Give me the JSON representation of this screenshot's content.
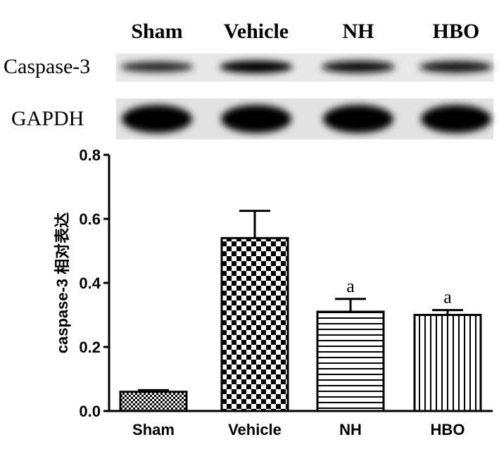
{
  "blot": {
    "lane_labels": [
      "Sham",
      "Vehicle",
      "NH",
      "HBO"
    ],
    "rows": [
      {
        "label": "Caspase-3",
        "band_intensity": [
          0.55,
          1.0,
          0.85,
          0.8
        ]
      },
      {
        "label": "GAPDH",
        "band_intensity": [
          1.0,
          1.0,
          1.0,
          1.0
        ]
      }
    ]
  },
  "chart_data": {
    "type": "bar",
    "categories": [
      "Sham",
      "Vehicle",
      "NH",
      "HBO"
    ],
    "values": [
      0.06,
      0.54,
      0.31,
      0.3
    ],
    "errors": [
      0.005,
      0.085,
      0.04,
      0.015
    ],
    "patterns": [
      "fine-checker",
      "checker",
      "horizontal-lines",
      "vertical-lines"
    ],
    "annotations": [
      "",
      "",
      "a",
      "a"
    ],
    "ylabel": "caspase-3 相对表达",
    "ylim": [
      0,
      0.8
    ],
    "yticks": [
      "0.0",
      "0.2",
      "0.4",
      "0.6",
      "0.8"
    ],
    "grid": false
  }
}
